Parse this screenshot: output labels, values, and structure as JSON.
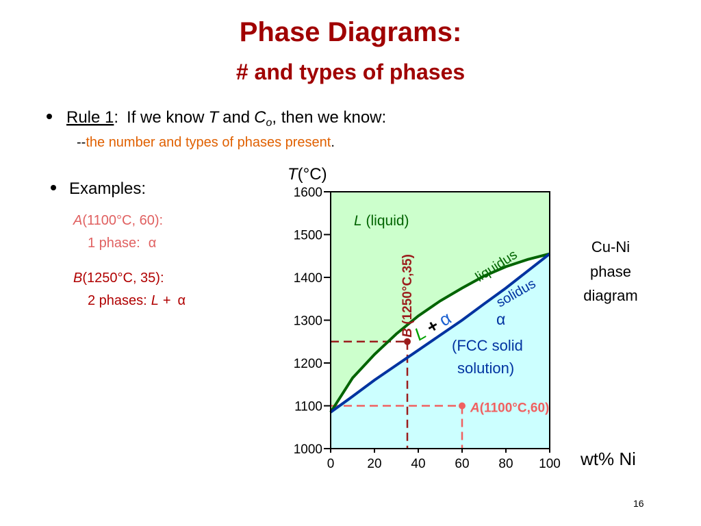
{
  "title": "Phase Diagrams:",
  "subtitle": "# and types of phases",
  "rule": {
    "label": "Rule 1",
    "colon": ":",
    "text1": "If we know",
    "T": "T",
    "text2": "and",
    "C": "C",
    "sub": "o",
    "text3": ", then we know:",
    "dash": "--",
    "highlight": "the number and types of phases present",
    "end": "."
  },
  "examples": {
    "heading": "Examples:",
    "a_letter": "A",
    "a_coords": "(1100°C, 60):",
    "a_result": "1 phase:",
    "a_phase": "α",
    "b_letter": "B",
    "b_coords": "(1250°C, 35):",
    "b_result": "2 phases:",
    "b_L": "L",
    "b_plus": "+",
    "b_alpha": "α"
  },
  "side_label": [
    "Cu-Ni",
    "phase",
    "diagram"
  ],
  "page_number": "16",
  "chart_data": {
    "type": "line",
    "y_label_var": "T",
    "y_label_unit": "(°C)",
    "x_label": "wt% Ni",
    "xlim": [
      0,
      100
    ],
    "xticks": [
      0,
      20,
      40,
      60,
      80,
      100
    ],
    "ylim": [
      1000,
      1600
    ],
    "yticks": [
      1000,
      1100,
      1200,
      1300,
      1400,
      1500,
      1600
    ],
    "liquid_color": "#ccffcc",
    "solid_color": "#ccffff",
    "x": [
      0,
      10,
      20,
      30,
      40,
      50,
      60,
      70,
      80,
      90,
      100
    ],
    "series": [
      {
        "name": "liquidus",
        "color": "#006400",
        "values": [
          1085,
          1165,
          1220,
          1268,
          1310,
          1345,
          1375,
          1403,
          1425,
          1442,
          1455
        ]
      },
      {
        "name": "solidus",
        "color": "#0033a0",
        "values": [
          1085,
          1122,
          1160,
          1195,
          1230,
          1265,
          1300,
          1338,
          1375,
          1415,
          1455
        ]
      }
    ],
    "regions": {
      "liquid_L": "L",
      "liquid_text": " (liquid)",
      "two_L": "L",
      "two_plus": "+",
      "two_alpha": "α",
      "solid_alpha": "α",
      "solid_line1": "(FCC solid",
      "solid_line2": "solution)"
    },
    "points": [
      {
        "letter": "A",
        "label": "(1100°C,60)",
        "x": 60,
        "y": 1100,
        "color": "#f06060"
      },
      {
        "letter": "B",
        "label": " (1250°C,35)",
        "x": 35,
        "y": 1250,
        "color": "#9b1c1c"
      }
    ]
  }
}
